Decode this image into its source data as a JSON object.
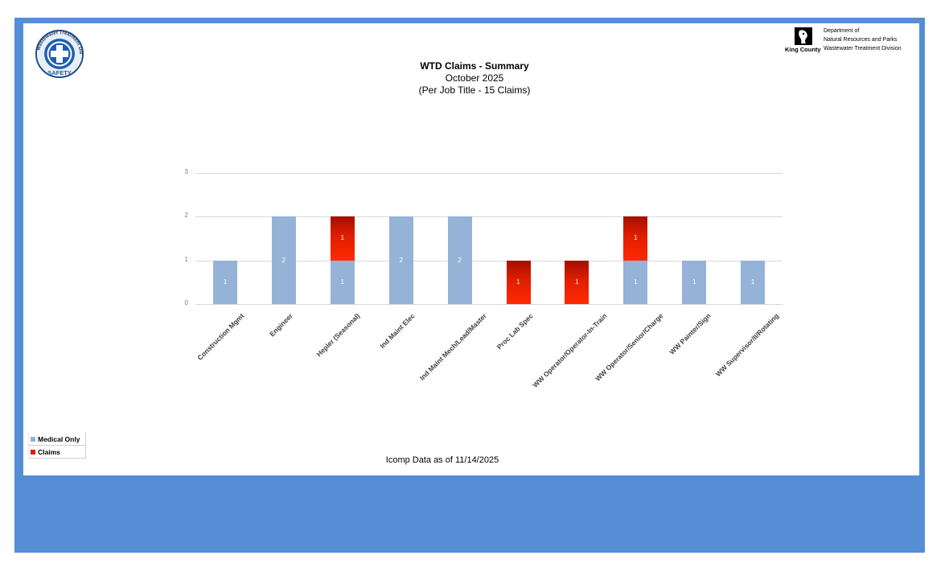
{
  "header": {
    "left_logo": {
      "icon": "safety-cross-icon",
      "ring_text": "Wastewater Treatment Division",
      "badge_text": "SAFETY"
    },
    "right_logo": {
      "icon": "king-county-logo-icon",
      "org_name": "King County",
      "lines": [
        "Department of",
        "Natural Resources and Parks",
        "Wastewater Treatment Division"
      ]
    },
    "title": "WTD Claims - Summary",
    "subtitle": "October 2025",
    "subtitle2": "(Per Job Title - 15 Claims)"
  },
  "legend": {
    "items": [
      {
        "label": "Medical Only",
        "color": "#95b3d7"
      },
      {
        "label": "Claims",
        "color": "#e01e00"
      }
    ]
  },
  "footer": {
    "note": "Icomp Data as of 11/14/2025"
  },
  "colors": {
    "frame": "#558ed5",
    "medical_only": "#95b3d7",
    "claims": "#e01e00",
    "gridline": "#d9d9d9"
  },
  "chart_data": {
    "type": "bar",
    "stacked": true,
    "title": "WTD Claims - Summary",
    "subtitle": "October 2025 (Per Job Title - 15 Claims)",
    "xlabel": "",
    "ylabel": "",
    "ylim": [
      0,
      3
    ],
    "yticks": [
      "0",
      "1",
      "2",
      "3"
    ],
    "grid": true,
    "legend_position": "bottom-left",
    "categories": [
      "Construction Mgmt",
      "Engineer",
      "Hepler (Seasonal)",
      "Ind Maint Elec",
      "Ind Maint Mech/Lead/Master",
      "Proc Lab Spec",
      "WW Operator/Operator-In-Train",
      "WW Operator/Senior/Charge",
      "WW Painter/Sign",
      "WW Supervisor/II/Rotating"
    ],
    "series": [
      {
        "name": "Medical Only",
        "values": [
          1,
          2,
          1,
          2,
          2,
          0,
          0,
          1,
          1,
          1
        ]
      },
      {
        "name": "Claims",
        "values": [
          0,
          0,
          1,
          0,
          0,
          1,
          1,
          1,
          0,
          0
        ]
      }
    ],
    "annotations": "Icomp Data as of 11/14/2025"
  }
}
